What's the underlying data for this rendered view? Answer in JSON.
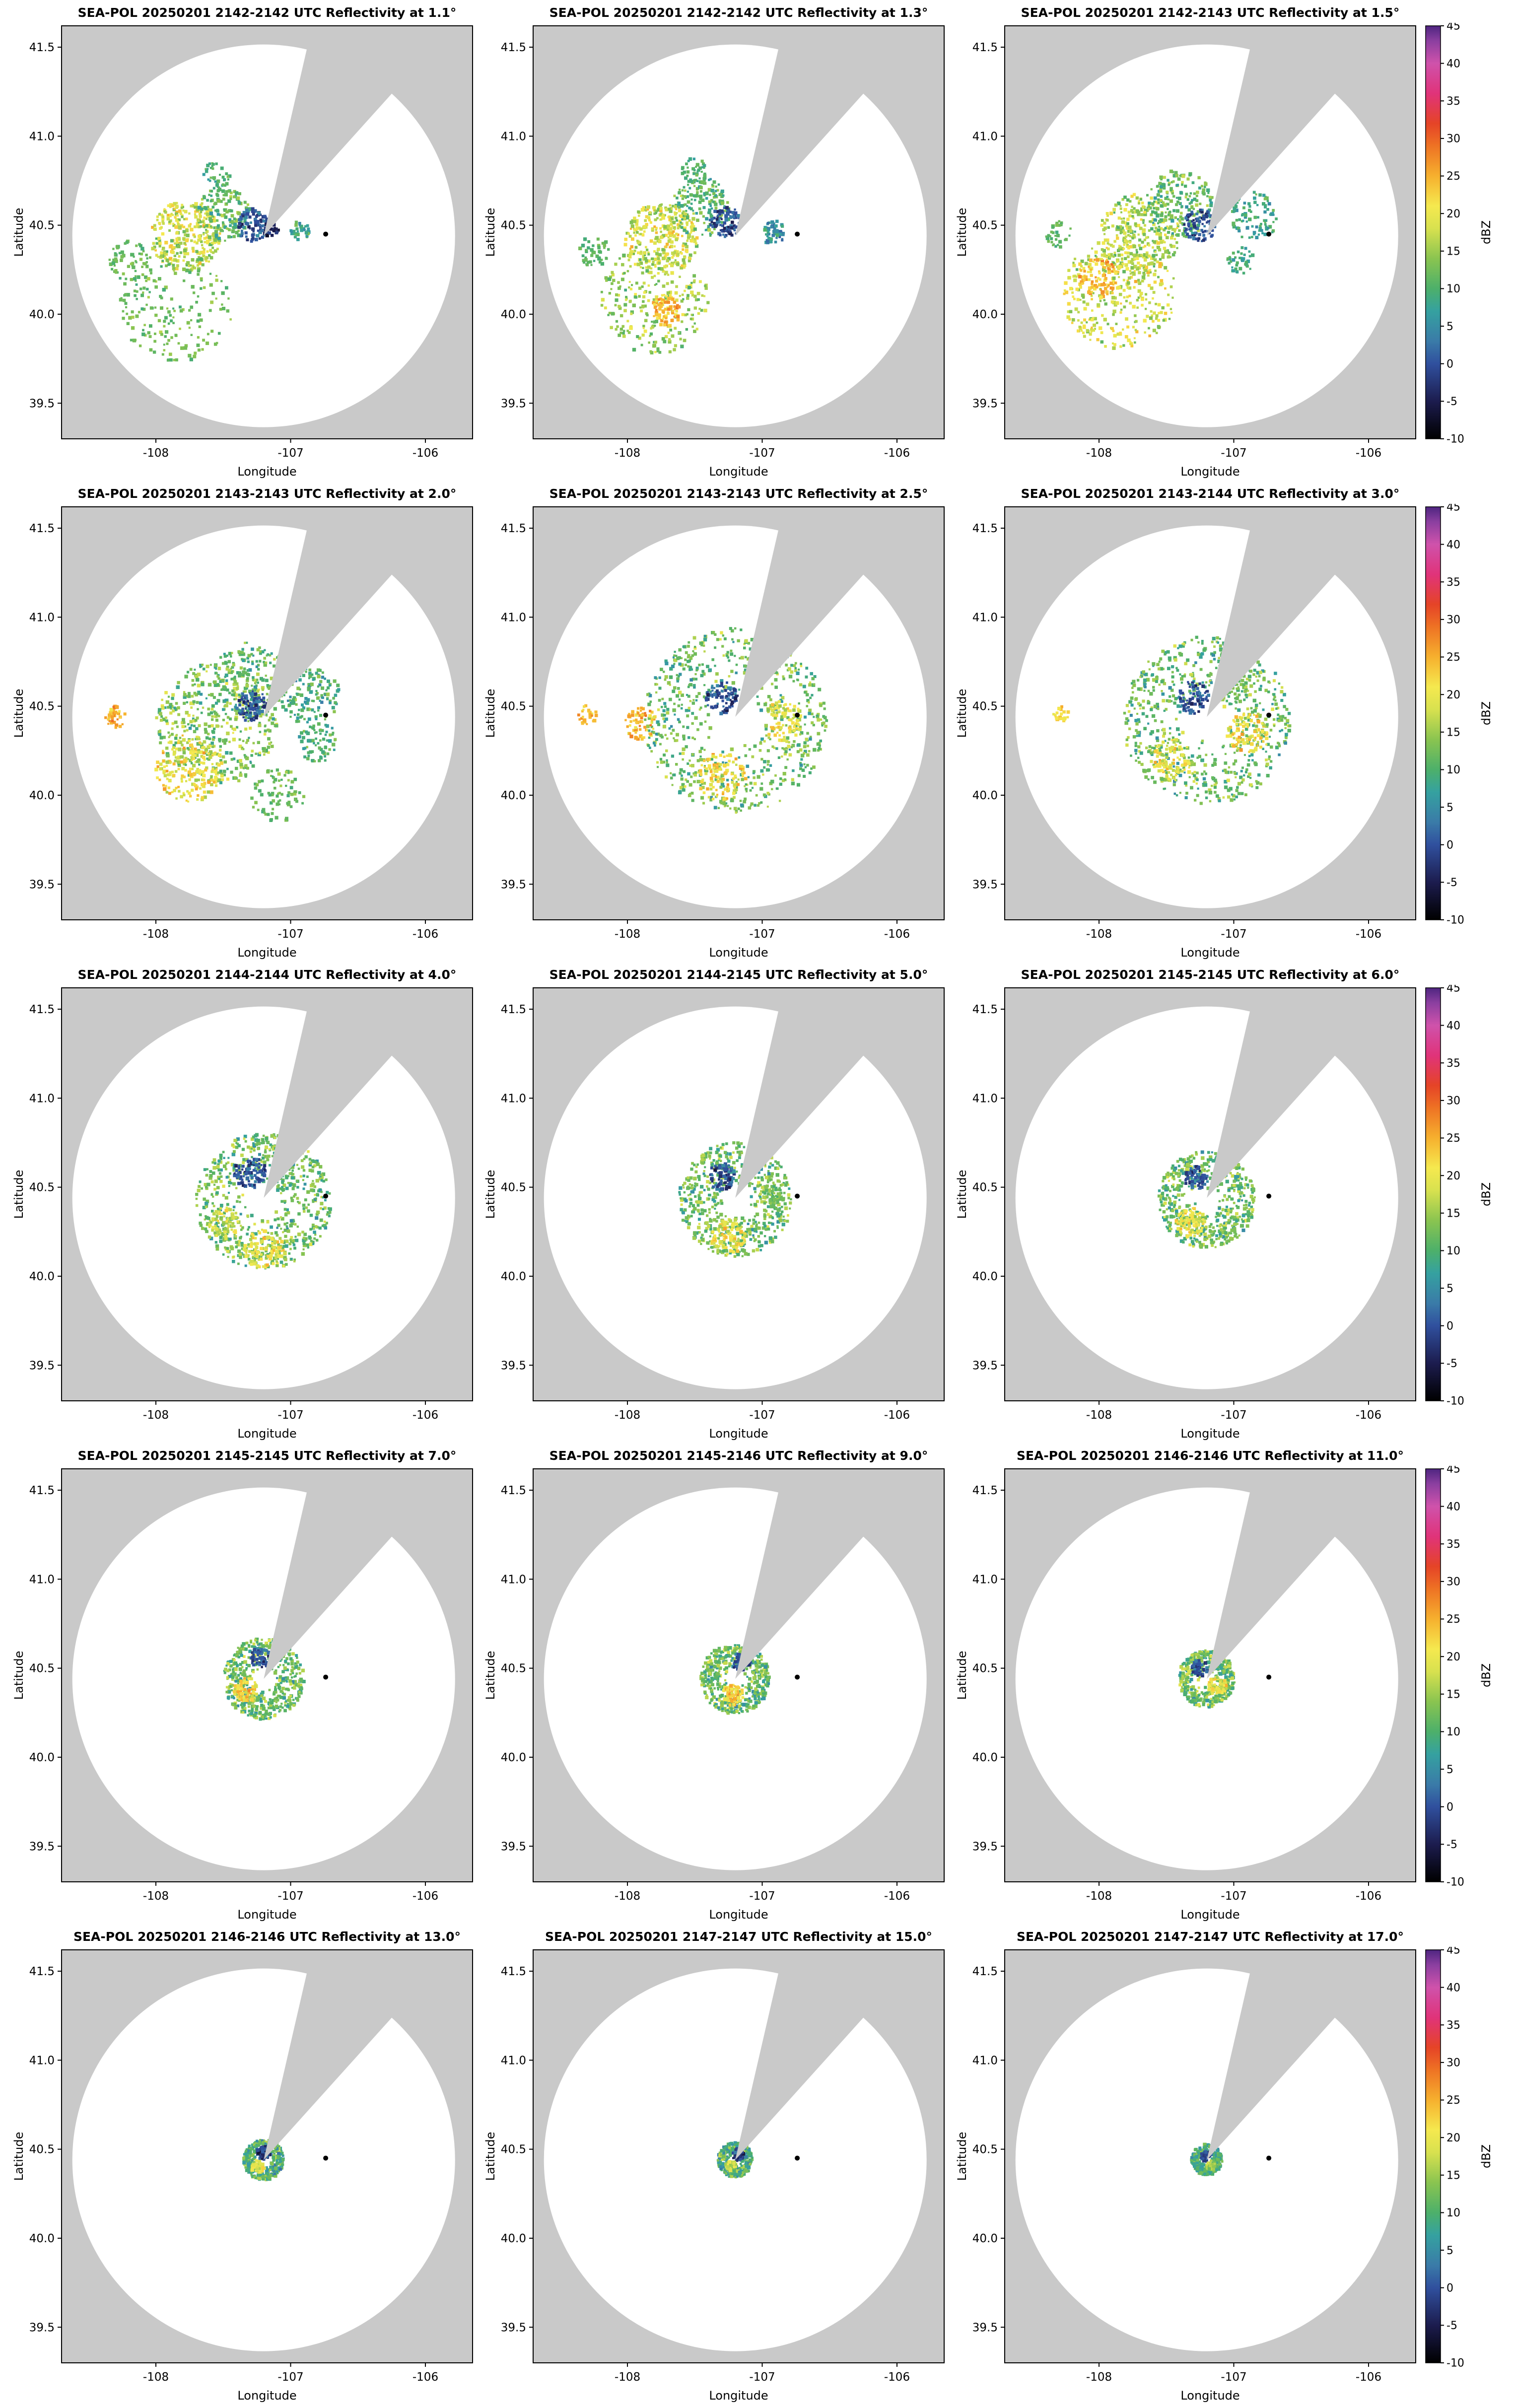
{
  "figure": {
    "background": "#ffffff",
    "panel_bg": "#c9c9c9",
    "rows": 5,
    "cols": 3
  },
  "chart_data": {
    "type": "heatmap",
    "subtype": "radar_ppi_grid",
    "radar_name": "SEA-POL",
    "date": "20250201",
    "axes": {
      "xlabel": "Longitude",
      "ylabel": "Latitude",
      "xlim": [
        -108.7,
        -105.65
      ],
      "ylim": [
        39.3,
        41.62
      ],
      "xticks": [
        -108,
        -107,
        -106
      ],
      "yticks": [
        39.5,
        40.0,
        40.5,
        41.0,
        41.5
      ]
    },
    "colorbar": {
      "label": "dBZ",
      "min": -10,
      "max": 45,
      "ticks": [
        -10,
        -5,
        0,
        5,
        10,
        15,
        20,
        25,
        30,
        35,
        40,
        45
      ],
      "stops": [
        {
          "v": -10,
          "c": "#000000"
        },
        {
          "v": -5,
          "c": "#1c1c4e"
        },
        {
          "v": 0,
          "c": "#30509e"
        },
        {
          "v": 3,
          "c": "#3a7ba8"
        },
        {
          "v": 7,
          "c": "#35a1a0"
        },
        {
          "v": 10,
          "c": "#4db06a"
        },
        {
          "v": 14,
          "c": "#8ac450"
        },
        {
          "v": 18,
          "c": "#d8e14f"
        },
        {
          "v": 21,
          "c": "#f5e94f"
        },
        {
          "v": 25,
          "c": "#f6b02e"
        },
        {
          "v": 29,
          "c": "#ee7224"
        },
        {
          "v": 32,
          "c": "#e54427"
        },
        {
          "v": 36,
          "c": "#e0337a"
        },
        {
          "v": 40,
          "c": "#cf52ab"
        },
        {
          "v": 43,
          "c": "#8b3fa0"
        },
        {
          "v": 45,
          "c": "#4e2580"
        }
      ]
    },
    "radar": {
      "center_lon": -107.2,
      "center_lat": 40.44,
      "range_deg_lon": 1.42,
      "blocked_sector_deg": [
        13,
        42
      ],
      "marker": [
        -106.74,
        40.45
      ]
    },
    "cluster_fields": [
      "lon",
      "lat",
      "radius_deg",
      "n_points",
      "dbz_min",
      "dbz_max",
      "inner_frac"
    ],
    "panels": [
      {
        "title": "SEA-POL 20250201 2142-2142 UTC Reflectivity at 1.1°",
        "time_utc": "2142-2142",
        "elevation_deg": 1.1,
        "clusters": [
          [
            -107.78,
            40.44,
            0.26,
            300,
            10,
            26,
            0
          ],
          [
            -107.5,
            40.56,
            0.2,
            150,
            5,
            18,
            0
          ],
          [
            -107.28,
            40.5,
            0.12,
            90,
            -6,
            6,
            0
          ],
          [
            -107.15,
            40.47,
            0.06,
            25,
            -8,
            0,
            0
          ],
          [
            -107.85,
            40.05,
            0.42,
            200,
            8,
            17,
            0
          ],
          [
            -108.2,
            40.3,
            0.15,
            60,
            8,
            15,
            0
          ],
          [
            -106.93,
            40.47,
            0.07,
            35,
            3,
            14,
            0
          ],
          [
            -107.55,
            40.78,
            0.1,
            40,
            6,
            14,
            0
          ]
        ]
      },
      {
        "title": "SEA-POL 20250201 2142-2142 UTC Reflectivity at 1.3°",
        "time_utc": "2142-2142",
        "elevation_deg": 1.3,
        "clusters": [
          [
            -107.75,
            40.42,
            0.27,
            300,
            10,
            26,
            0
          ],
          [
            -107.45,
            40.6,
            0.22,
            170,
            5,
            18,
            0
          ],
          [
            -107.27,
            40.52,
            0.12,
            90,
            -6,
            6,
            0
          ],
          [
            -107.8,
            40.08,
            0.4,
            260,
            8,
            22,
            0
          ],
          [
            -107.72,
            40.02,
            0.12,
            80,
            18,
            30,
            0
          ],
          [
            -106.92,
            40.46,
            0.09,
            50,
            0,
            12,
            0
          ],
          [
            -108.25,
            40.35,
            0.12,
            45,
            8,
            14,
            0
          ],
          [
            -107.5,
            40.8,
            0.1,
            40,
            6,
            14,
            0
          ]
        ]
      },
      {
        "title": "SEA-POL 20250201 2142-2143 UTC Reflectivity at 1.5°",
        "time_utc": "2142-2143",
        "elevation_deg": 1.5,
        "clusters": [
          [
            -107.7,
            40.45,
            0.3,
            300,
            8,
            24,
            0
          ],
          [
            -107.4,
            40.62,
            0.25,
            200,
            5,
            18,
            0
          ],
          [
            -107.25,
            40.5,
            0.12,
            90,
            -6,
            6,
            0
          ],
          [
            -107.85,
            40.12,
            0.42,
            320,
            10,
            26,
            0
          ],
          [
            -108.0,
            40.2,
            0.15,
            90,
            18,
            30,
            0
          ],
          [
            -106.85,
            40.55,
            0.18,
            90,
            3,
            14,
            0
          ],
          [
            -106.95,
            40.3,
            0.1,
            40,
            5,
            12,
            0
          ],
          [
            -108.3,
            40.45,
            0.1,
            35,
            8,
            14,
            0
          ]
        ]
      },
      {
        "title": "SEA-POL 20250201 2143-2143 UTC Reflectivity at 2.0°",
        "time_utc": "2143-2143",
        "elevation_deg": 2.0,
        "clusters": [
          [
            -107.55,
            40.4,
            0.45,
            450,
            5,
            22,
            0
          ],
          [
            -107.75,
            40.15,
            0.25,
            180,
            12,
            28,
            0
          ],
          [
            -107.3,
            40.65,
            0.28,
            200,
            5,
            18,
            0
          ],
          [
            -107.28,
            40.5,
            0.12,
            90,
            -6,
            6,
            0
          ],
          [
            -106.85,
            40.55,
            0.22,
            140,
            3,
            16,
            0
          ],
          [
            -106.8,
            40.3,
            0.15,
            70,
            5,
            15,
            0
          ],
          [
            -108.3,
            40.44,
            0.08,
            40,
            20,
            30,
            0
          ],
          [
            -107.1,
            40.0,
            0.2,
            80,
            8,
            16,
            0
          ]
        ]
      },
      {
        "title": "SEA-POL 20250201 2143-2143 UTC Reflectivity at 2.5°",
        "time_utc": "2143-2143",
        "elevation_deg": 2.5,
        "clusters": [
          [
            -107.2,
            40.42,
            0.68,
            700,
            4,
            20,
            0.25
          ],
          [
            -107.9,
            40.4,
            0.12,
            70,
            18,
            30,
            0
          ],
          [
            -107.3,
            40.1,
            0.18,
            110,
            15,
            28,
            0
          ],
          [
            -106.85,
            40.42,
            0.15,
            90,
            12,
            26,
            0
          ],
          [
            -107.3,
            40.55,
            0.12,
            80,
            -6,
            6,
            0
          ],
          [
            -108.3,
            40.45,
            0.07,
            30,
            20,
            28,
            0
          ]
        ]
      },
      {
        "title": "SEA-POL 20250201 2143-2144 UTC Reflectivity at 3.0°",
        "time_utc": "2143-2144",
        "elevation_deg": 3.0,
        "clusters": [
          [
            -107.2,
            40.42,
            0.62,
            680,
            4,
            20,
            0.22
          ],
          [
            -106.9,
            40.35,
            0.15,
            90,
            15,
            28,
            0
          ],
          [
            -107.45,
            40.2,
            0.15,
            90,
            14,
            26,
            0
          ],
          [
            -107.3,
            40.55,
            0.12,
            80,
            -6,
            6,
            0
          ],
          [
            -107.0,
            40.6,
            0.12,
            60,
            8,
            18,
            0
          ],
          [
            -108.28,
            40.46,
            0.06,
            25,
            18,
            26,
            0
          ]
        ]
      },
      {
        "title": "SEA-POL 20250201 2144-2144 UTC Reflectivity at 4.0°",
        "time_utc": "2144-2144",
        "elevation_deg": 4.0,
        "clusters": [
          [
            -107.2,
            40.42,
            0.5,
            650,
            4,
            20,
            0.2
          ],
          [
            -107.2,
            40.15,
            0.15,
            100,
            14,
            26,
            0
          ],
          [
            -107.5,
            40.3,
            0.12,
            70,
            12,
            24,
            0
          ],
          [
            -107.3,
            40.58,
            0.12,
            90,
            -6,
            6,
            0
          ],
          [
            -107.05,
            40.55,
            0.1,
            50,
            5,
            15,
            0
          ]
        ]
      },
      {
        "title": "SEA-POL 20250201 2144-2145 UTC Reflectivity at 5.0°",
        "time_utc": "2144-2145",
        "elevation_deg": 5.0,
        "clusters": [
          [
            -107.2,
            40.43,
            0.42,
            600,
            4,
            20,
            0.22
          ],
          [
            -107.25,
            40.22,
            0.13,
            90,
            14,
            26,
            0
          ],
          [
            -107.3,
            40.56,
            0.1,
            80,
            -6,
            6,
            0
          ],
          [
            -106.95,
            40.45,
            0.08,
            40,
            8,
            18,
            0
          ]
        ]
      },
      {
        "title": "SEA-POL 20250201 2145-2145 UTC Reflectivity at 6.0°",
        "time_utc": "2145-2145",
        "elevation_deg": 6.0,
        "clusters": [
          [
            -107.2,
            40.43,
            0.36,
            560,
            4,
            20,
            0.22
          ],
          [
            -107.32,
            40.3,
            0.11,
            80,
            14,
            26,
            0
          ],
          [
            -107.28,
            40.55,
            0.09,
            70,
            -6,
            6,
            0
          ]
        ]
      },
      {
        "title": "SEA-POL 20250201 2145-2145 UTC Reflectivity at 7.0°",
        "time_utc": "2145-2145",
        "elevation_deg": 7.0,
        "clusters": [
          [
            -107.2,
            40.44,
            0.3,
            520,
            4,
            20,
            0.25
          ],
          [
            -107.33,
            40.38,
            0.09,
            70,
            16,
            28,
            0
          ],
          [
            -107.22,
            40.56,
            0.08,
            60,
            -6,
            6,
            0
          ]
        ]
      },
      {
        "title": "SEA-POL 20250201 2145-2146 UTC Reflectivity at 9.0°",
        "time_utc": "2145-2146",
        "elevation_deg": 9.0,
        "clusters": [
          [
            -107.2,
            40.44,
            0.26,
            480,
            4,
            20,
            0.25
          ],
          [
            -107.22,
            40.35,
            0.08,
            70,
            16,
            28,
            0
          ],
          [
            -107.15,
            40.53,
            0.07,
            50,
            -6,
            6,
            0
          ]
        ]
      },
      {
        "title": "SEA-POL 20250201 2146-2146 UTC Reflectivity at 11.0°",
        "time_utc": "2146-2146",
        "elevation_deg": 11.0,
        "clusters": [
          [
            -107.2,
            40.44,
            0.21,
            420,
            4,
            20,
            0.25
          ],
          [
            -107.12,
            40.4,
            0.07,
            60,
            14,
            26,
            0
          ],
          [
            -107.25,
            40.5,
            0.06,
            45,
            -6,
            6,
            0
          ]
        ]
      },
      {
        "title": "SEA-POL 20250201 2146-2146 UTC Reflectivity at 13.0°",
        "time_utc": "2146-2146",
        "elevation_deg": 13.0,
        "clusters": [
          [
            -107.2,
            40.44,
            0.15,
            320,
            2,
            18,
            0.3
          ],
          [
            -107.2,
            40.48,
            0.05,
            60,
            -8,
            4,
            0
          ],
          [
            -107.24,
            40.4,
            0.05,
            40,
            14,
            24,
            0
          ]
        ]
      },
      {
        "title": "SEA-POL 20250201 2147-2147 UTC Reflectivity at 15.0°",
        "time_utc": "2147-2147",
        "elevation_deg": 15.0,
        "clusters": [
          [
            -107.2,
            40.44,
            0.13,
            300,
            2,
            18,
            0.3
          ],
          [
            -107.18,
            40.47,
            0.045,
            50,
            -8,
            4,
            0
          ],
          [
            -107.23,
            40.41,
            0.04,
            35,
            12,
            22,
            0
          ]
        ]
      },
      {
        "title": "SEA-POL 20250201 2147-2147 UTC Reflectivity at 17.0°",
        "time_utc": "2147-2147",
        "elevation_deg": 17.0,
        "clusters": [
          [
            -107.2,
            40.44,
            0.115,
            280,
            2,
            16,
            0.3
          ],
          [
            -107.21,
            40.46,
            0.04,
            45,
            -6,
            4,
            0
          ],
          [
            -107.17,
            40.41,
            0.035,
            30,
            10,
            20,
            0
          ]
        ]
      }
    ]
  }
}
